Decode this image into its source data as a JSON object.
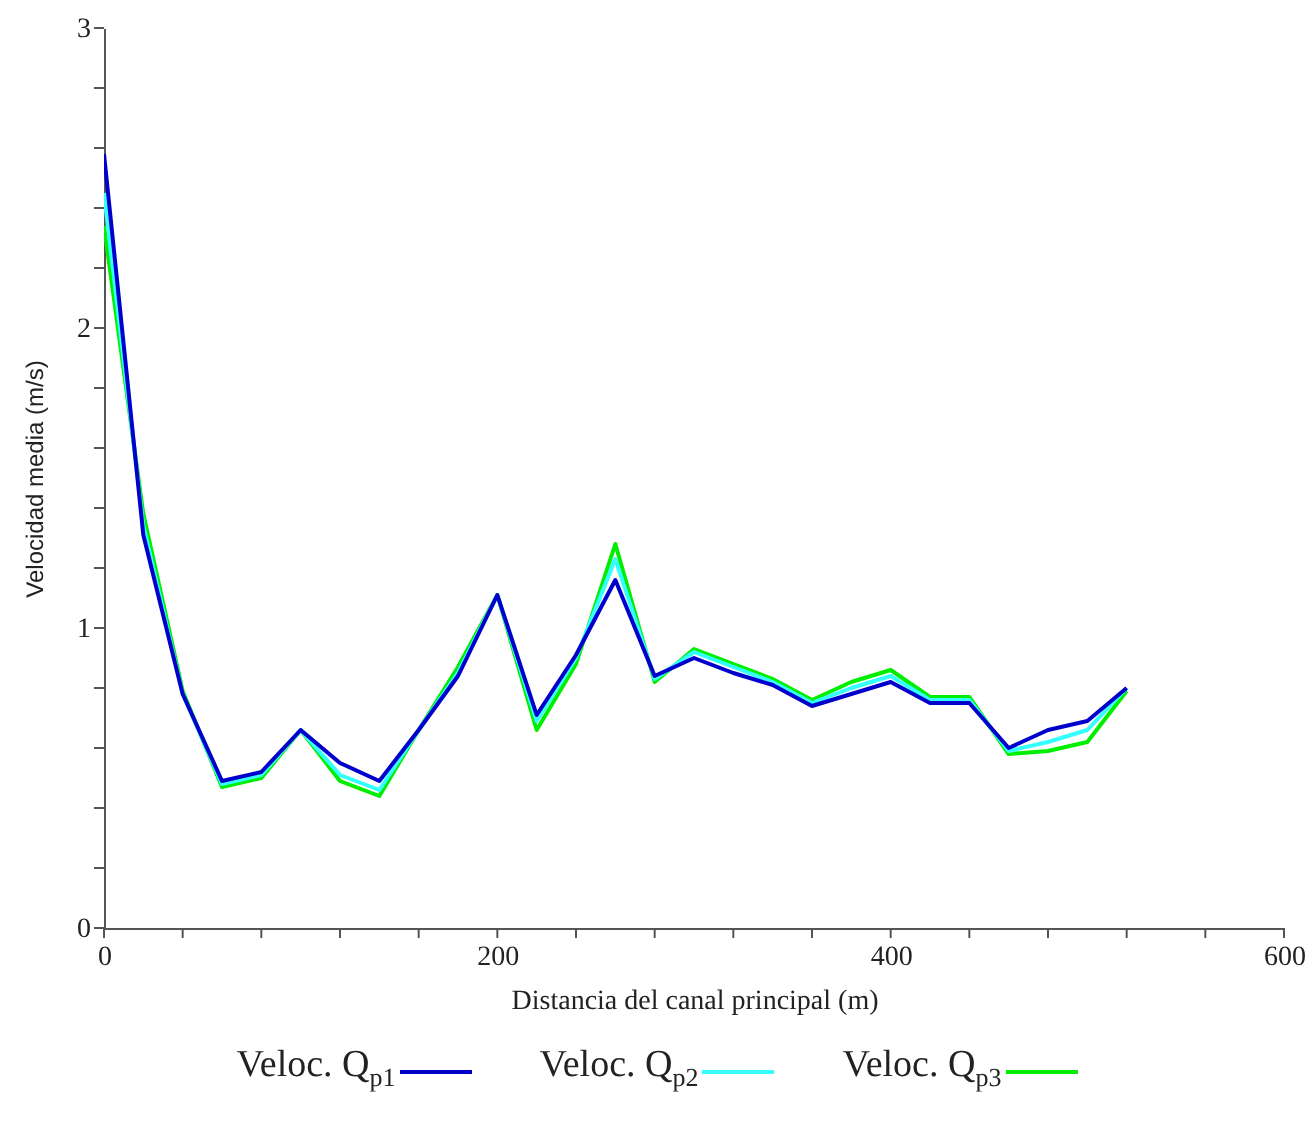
{
  "chart_data": {
    "type": "line",
    "xlabel": "Distancia del canal principal (m)",
    "ylabel": "Velocidad media (m/s)",
    "x": [
      0,
      20,
      40,
      60,
      80,
      100,
      120,
      140,
      160,
      180,
      200,
      220,
      240,
      260,
      280,
      300,
      320,
      340,
      360,
      380,
      400,
      420,
      440,
      460,
      480,
      500,
      520
    ],
    "series": [
      {
        "name": "Veloc. Q$_{p1}$",
        "color": "#0000cc",
        "values": [
          2.58,
          1.31,
          0.78,
          0.49,
          0.52,
          0.66,
          0.55,
          0.49,
          0.66,
          0.84,
          1.11,
          0.71,
          0.91,
          1.16,
          0.84,
          0.9,
          0.85,
          0.81,
          0.74,
          0.78,
          0.82,
          0.75,
          0.75,
          0.6,
          0.66,
          0.69,
          0.8
        ]
      },
      {
        "name": "Veloc. Q$_{p2}$",
        "color": "#33ffff",
        "values": [
          2.45,
          1.34,
          0.78,
          0.48,
          0.51,
          0.66,
          0.51,
          0.46,
          0.66,
          0.85,
          1.11,
          0.69,
          0.9,
          1.23,
          0.83,
          0.92,
          0.87,
          0.82,
          0.75,
          0.8,
          0.84,
          0.76,
          0.76,
          0.59,
          0.62,
          0.66,
          0.8
        ]
      },
      {
        "name": "Veloc. Q$_{p3}$",
        "color": "#00ee00",
        "values": [
          2.34,
          1.38,
          0.79,
          0.47,
          0.5,
          0.66,
          0.49,
          0.44,
          0.66,
          0.87,
          1.11,
          0.66,
          0.88,
          1.28,
          0.82,
          0.93,
          0.88,
          0.83,
          0.76,
          0.82,
          0.86,
          0.77,
          0.77,
          0.58,
          0.59,
          0.62,
          0.79
        ]
      }
    ],
    "xlim": [
      0,
      600
    ],
    "xticks": [
      0,
      {
        "value": 40,
        "label": null
      },
      {
        "value": 80,
        "label": null
      },
      {
        "value": 120,
        "label": null
      },
      {
        "value": 160,
        "label": null
      },
      200,
      {
        "value": 240,
        "label": null
      },
      {
        "value": 280,
        "label": null
      },
      {
        "value": 320,
        "label": null
      },
      {
        "value": 360,
        "label": null
      },
      400,
      {
        "value": 440,
        "label": null
      },
      {
        "value": 480,
        "label": null
      },
      {
        "value": 520,
        "label": null
      },
      {
        "value": 560,
        "label": null
      },
      600
    ],
    "ylim": [
      0,
      3
    ],
    "yticks": [
      0,
      {
        "value": 0.2,
        "label": null
      },
      {
        "value": 0.4,
        "label": null
      },
      {
        "value": 0.6,
        "label": null
      },
      {
        "value": 0.8,
        "label": null
      },
      1,
      {
        "value": 1.2,
        "label": null
      },
      {
        "value": 1.4,
        "label": null
      },
      {
        "value": 1.6,
        "label": null
      },
      {
        "value": 1.8,
        "label": null
      },
      2,
      {
        "value": 2.2,
        "label": null
      },
      {
        "value": 2.4,
        "label": null
      },
      {
        "value": 2.6,
        "label": null
      },
      {
        "value": 2.8,
        "label": null
      },
      3
    ],
    "legend": "bottom",
    "grid": false,
    "marker": "none",
    "line_style": "solid"
  }
}
